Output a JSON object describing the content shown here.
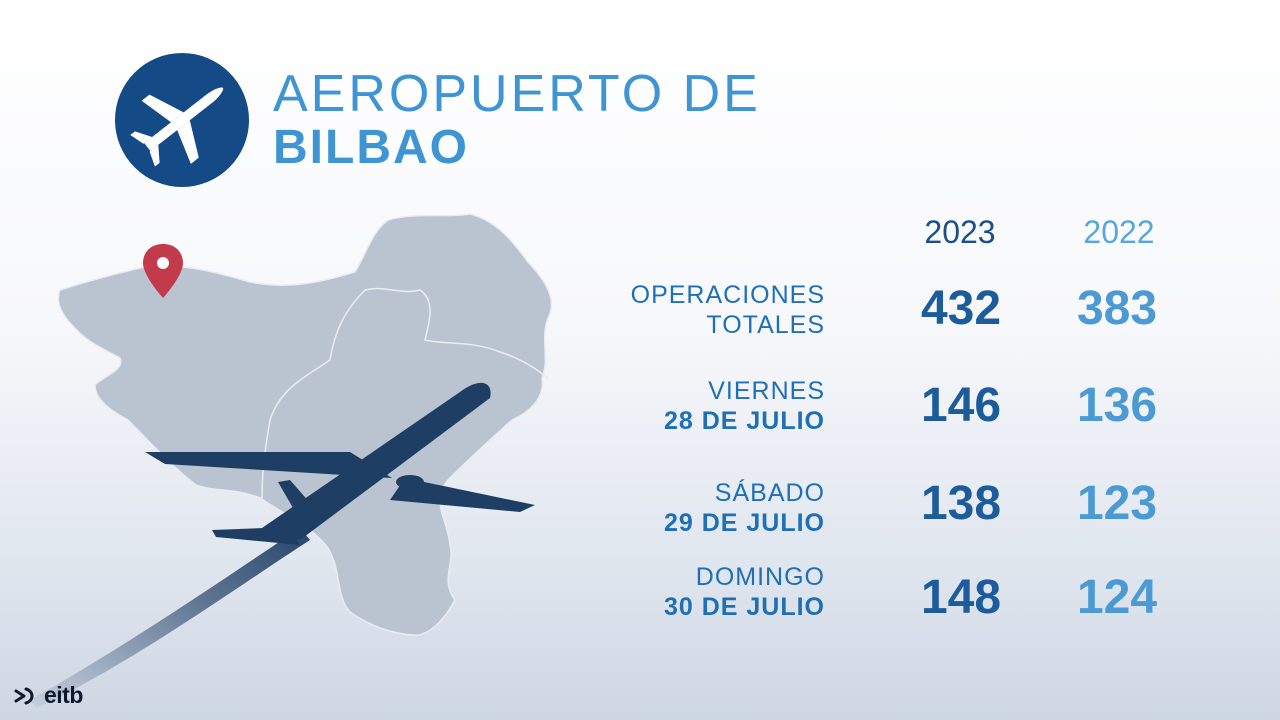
{
  "title": {
    "line1": "AEROPUERTO DE",
    "line2": "BILBAO"
  },
  "columns": [
    "2023",
    "2022"
  ],
  "rows": [
    {
      "label_line1": "OPERACIONES",
      "label_line2": "TOTALES",
      "v2023": "432",
      "v2022": "383"
    },
    {
      "label_line1": "VIERNES",
      "label_line2": "28 DE JULIO",
      "v2023": "146",
      "v2022": "136"
    },
    {
      "label_line1": "SÁBADO",
      "label_line2": "29 DE JULIO",
      "v2023": "138",
      "v2022": "123"
    },
    {
      "label_line1": "DOMINGO",
      "label_line2": "30 DE JULIO",
      "v2023": "148",
      "v2022": "124"
    }
  ],
  "brand": "eitb",
  "icons": [
    "airplane-icon",
    "location-pin-icon",
    "eitb-logo-icon"
  ],
  "colors": {
    "navy": "#144a86",
    "title_blue": "#3f95d3",
    "label_blue": "#1e6fb6",
    "pin": "#c23b4b",
    "map": "#bac4d1"
  }
}
